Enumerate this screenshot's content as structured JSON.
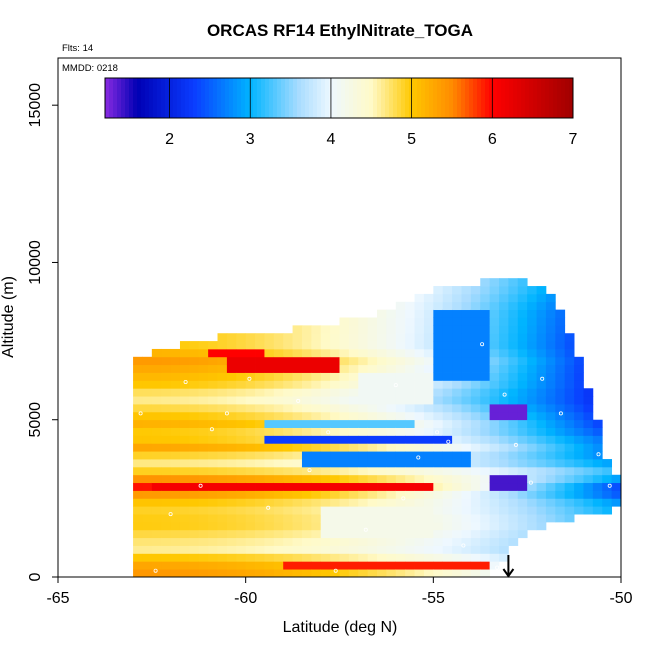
{
  "chart_data": {
    "type": "heatmap",
    "title": "ORCAS RF14 EthylNitrate_TOGA",
    "xlabel": "Latitude (deg N)",
    "ylabel": "Altitude (m)",
    "xlim": [
      -65,
      -50
    ],
    "ylim": [
      0,
      16500
    ],
    "x_ticks": [
      -65,
      -60,
      -55,
      -50
    ],
    "x_tick_labels": [
      "-65",
      "-60",
      "-55",
      "-50"
    ],
    "y_ticks": [
      0,
      5000,
      10000,
      15000
    ],
    "y_tick_labels": [
      "0",
      "5000",
      "10000",
      "15000"
    ],
    "annotations": {
      "flights": "Flts: 14",
      "date": "MMDD: 0218"
    },
    "colorbar": {
      "range": [
        1.2,
        7.0
      ],
      "ticks": [
        2,
        3,
        4,
        5,
        6,
        7
      ],
      "tick_labels": [
        "2",
        "3",
        "4",
        "5",
        "6",
        "7"
      ],
      "stops": [
        {
          "value": 1.2,
          "color": "#8a2be2"
        },
        {
          "value": 1.6,
          "color": "#0000b4"
        },
        {
          "value": 2.3,
          "color": "#0a3cff"
        },
        {
          "value": 3.0,
          "color": "#00b4ff"
        },
        {
          "value": 3.6,
          "color": "#a8dcff"
        },
        {
          "value": 4.0,
          "color": "#eef8ff"
        },
        {
          "value": 4.5,
          "color": "#fffac8"
        },
        {
          "value": 5.0,
          "color": "#ffc800"
        },
        {
          "value": 5.5,
          "color": "#ff8c00"
        },
        {
          "value": 6.0,
          "color": "#ff0000"
        },
        {
          "value": 7.0,
          "color": "#a00000"
        }
      ]
    },
    "grid": {
      "lat_step": 0.25,
      "alt_step": 250,
      "domain_lower_alt": 0,
      "domain_upper_alt_by_lat": [
        {
          "lat": -63.0,
          "alt": 6800
        },
        {
          "lat": -61.5,
          "alt": 7400
        },
        {
          "lat": -59.0,
          "alt": 7700
        },
        {
          "lat": -56.5,
          "alt": 8200
        },
        {
          "lat": -54.5,
          "alt": 9200
        },
        {
          "lat": -53.0,
          "alt": 9300
        },
        {
          "lat": -52.0,
          "alt": 9200
        },
        {
          "lat": -51.5,
          "alt": 8200
        },
        {
          "lat": -51.0,
          "alt": 6300
        },
        {
          "lat": -50.6,
          "alt": 4700
        },
        {
          "lat": -50.3,
          "alt": 3400
        },
        {
          "lat": -50.0,
          "alt": 3000
        }
      ],
      "bottom_edge_by_lat": [
        {
          "lat": -63.2,
          "alt": 0
        },
        {
          "lat": -53.5,
          "alt": 0
        },
        {
          "lat": -52.5,
          "alt": 1500
        },
        {
          "lat": -51.0,
          "alt": 2000
        },
        {
          "lat": -50.0,
          "alt": 2200
        }
      ],
      "layers_low_lat": [
        {
          "alt": 200,
          "value": 5.4
        },
        {
          "alt": 500,
          "value": 5.2
        },
        {
          "alt": 900,
          "value": 4.6
        },
        {
          "alt": 1300,
          "value": 4.8
        },
        {
          "alt": 1700,
          "value": 5.0
        },
        {
          "alt": 2100,
          "value": 4.9
        },
        {
          "alt": 2500,
          "value": 5.1
        },
        {
          "alt": 2900,
          "value": 6.0
        },
        {
          "alt": 3300,
          "value": 5.0
        },
        {
          "alt": 3700,
          "value": 4.6
        },
        {
          "alt": 4100,
          "value": 5.3
        },
        {
          "alt": 4500,
          "value": 4.9
        },
        {
          "alt": 4900,
          "value": 5.2
        },
        {
          "alt": 5300,
          "value": 4.9
        },
        {
          "alt": 5700,
          "value": 4.6
        },
        {
          "alt": 6100,
          "value": 5.0
        },
        {
          "alt": 6500,
          "value": 5.2
        },
        {
          "alt": 6900,
          "value": 5.4
        },
        {
          "alt": 7300,
          "value": 5.0
        }
      ],
      "layers_high_lat": [
        {
          "alt": 1800,
          "value": 3.0
        },
        {
          "alt": 2300,
          "value": 2.9
        },
        {
          "alt": 2800,
          "value": 2.2
        },
        {
          "alt": 3300,
          "value": 3.2
        },
        {
          "alt": 3800,
          "value": 2.6
        },
        {
          "alt": 4300,
          "value": 2.5
        },
        {
          "alt": 4800,
          "value": 2.1
        },
        {
          "alt": 5500,
          "value": 1.9
        },
        {
          "alt": 6500,
          "value": 1.8
        },
        {
          "alt": 7500,
          "value": 1.8
        },
        {
          "alt": 8500,
          "value": 1.9
        },
        {
          "alt": 9300,
          "value": 2.2
        }
      ],
      "anomalies": [
        {
          "lat_min": -60.5,
          "lat_max": -57.5,
          "alt_min": 6500,
          "alt_max": 7000,
          "value": 6.2
        },
        {
          "lat_min": -61.0,
          "lat_max": -59.5,
          "alt_min": 6900,
          "alt_max": 7300,
          "value": 6.0
        },
        {
          "lat_min": -62.5,
          "lat_max": -55.0,
          "alt_min": 2750,
          "alt_max": 3050,
          "value": 6.1
        },
        {
          "lat_min": -59.0,
          "lat_max": -53.5,
          "alt_min": 300,
          "alt_max": 550,
          "value": 5.9
        },
        {
          "lat_min": -59.5,
          "lat_max": -54.5,
          "alt_min": 4200,
          "alt_max": 4600,
          "value": 2.3
        },
        {
          "lat_min": -58.5,
          "lat_max": -54.0,
          "alt_min": 3600,
          "alt_max": 3900,
          "value": 2.7
        },
        {
          "lat_min": -59.5,
          "lat_max": -55.5,
          "alt_min": 4700,
          "alt_max": 5000,
          "value": 3.3
        },
        {
          "lat_min": -53.5,
          "lat_max": -52.5,
          "alt_min": 5100,
          "alt_max": 5600,
          "value": 1.3
        },
        {
          "lat_min": -53.5,
          "lat_max": -52.5,
          "alt_min": 2800,
          "alt_max": 3200,
          "value": 1.4
        },
        {
          "lat_min": -57.0,
          "lat_max": -55.0,
          "alt_min": 5500,
          "alt_max": 6500,
          "value": 4.1
        },
        {
          "lat_min": -55.0,
          "lat_max": -53.5,
          "alt_min": 6200,
          "alt_max": 8500,
          "value": 2.7
        },
        {
          "lat_min": -58.0,
          "lat_max": -55.0,
          "alt_min": 1200,
          "alt_max": 2200,
          "value": 4.2
        }
      ]
    },
    "observations": [
      [
        -62.4,
        200
      ],
      [
        -62.0,
        2000
      ],
      [
        -61.2,
        2900
      ],
      [
        -60.5,
        5200
      ],
      [
        -59.4,
        2200
      ],
      [
        -58.6,
        5600
      ],
      [
        -57.6,
        200
      ],
      [
        -56.8,
        1500
      ],
      [
        -56.0,
        6100
      ],
      [
        -55.4,
        3800
      ],
      [
        -54.6,
        4300
      ],
      [
        -54.2,
        1000
      ],
      [
        -53.7,
        7400
      ],
      [
        -53.1,
        5800
      ],
      [
        -52.8,
        4200
      ],
      [
        -52.4,
        3000
      ],
      [
        -52.1,
        6300
      ],
      [
        -51.6,
        5200
      ],
      [
        -51.3,
        9000
      ],
      [
        -50.6,
        3900
      ],
      [
        -50.3,
        2900
      ],
      [
        -53.3,
        300
      ],
      [
        -57.8,
        4600
      ],
      [
        -59.9,
        6300
      ],
      [
        -62.8,
        5200
      ],
      [
        -61.6,
        6200
      ],
      [
        -55.8,
        2500
      ],
      [
        -54.9,
        4600
      ],
      [
        -60.9,
        4700
      ],
      [
        -58.3,
        3400
      ]
    ],
    "arrow_marker": {
      "lat": -53.0,
      "alt_top": 700,
      "alt_bottom": 0
    }
  }
}
